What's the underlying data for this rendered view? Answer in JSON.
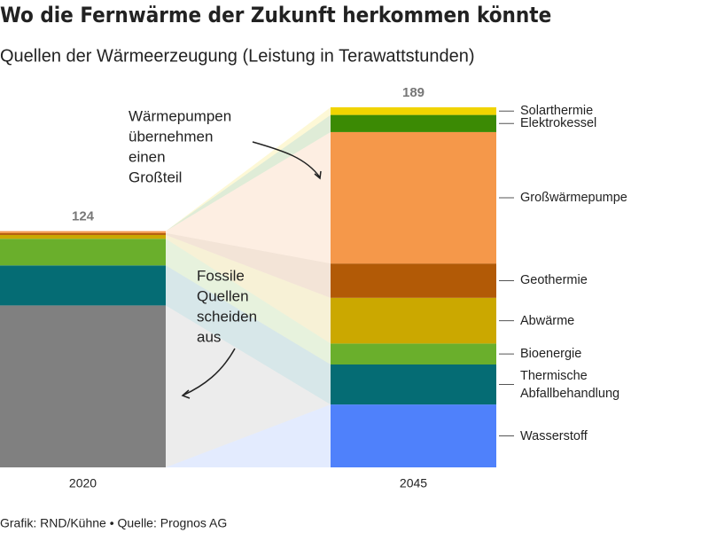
{
  "chart_data": {
    "type": "stacked-flow-bar",
    "title": "Wo die Fernwärme der Zukunft herkommen könnte",
    "subtitle": "Quellen der Wärmeerzeugung (Leistung in Terawattstunden)",
    "categories": [
      "2020",
      "2045"
    ],
    "totals": [
      124,
      189
    ],
    "series": [
      {
        "name": "Wasserstoff",
        "color": "#4f81fb",
        "values": [
          0,
          33
        ]
      },
      {
        "color": "#808080",
        "values": [
          85,
          0
        ]
      },
      {
        "name": "Thermische Abfallbehandlung",
        "color": "#056c74",
        "values": [
          21,
          21
        ]
      },
      {
        "name": "Bioenergie",
        "color": "#6aaf2c",
        "values": [
          14,
          11
        ]
      },
      {
        "name": "Abwärme",
        "color": "#cba800",
        "values": [
          2,
          24
        ]
      },
      {
        "name": "Geothermie",
        "color": "#b25a06",
        "values": [
          1,
          18
        ]
      },
      {
        "name": "Großwärmepumpe",
        "color": "#f5984a",
        "values": [
          1,
          69
        ]
      },
      {
        "name": "Elektrokessel",
        "color": "#3b8a04",
        "values": [
          0,
          9
        ]
      },
      {
        "name": "Solarthermie",
        "color": "#f1d400",
        "values": [
          0,
          4
        ]
      }
    ],
    "annotations": [
      {
        "lines": [
          "Wärmepumpen",
          "übernehmen",
          "einen",
          "Großteil"
        ]
      },
      {
        "lines": [
          "Fossile",
          "Quellen",
          "scheiden",
          "aus"
        ]
      }
    ],
    "source": "Grafik: RND/Kühne • Quelle: Prognos AG"
  }
}
